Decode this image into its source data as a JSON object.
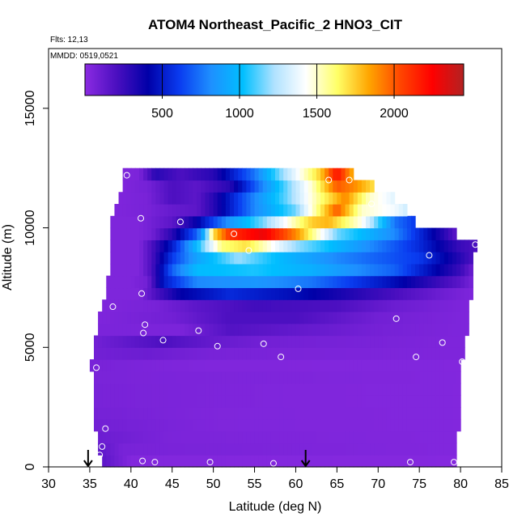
{
  "chart_data": {
    "type": "heatmap",
    "title": "ATOM4 Northeast_Pacific_2 HNO3_CIT",
    "flights_label": "Flts: 12,13",
    "dates_label": "MMDD: 0519,0521",
    "xlabel": "Latitude (deg N)",
    "ylabel": "Altitude (m)",
    "xlim": [
      30,
      85
    ],
    "ylim": [
      0,
      17500
    ],
    "x_ticks": [
      30,
      35,
      40,
      45,
      50,
      55,
      60,
      65,
      70,
      75,
      80,
      85
    ],
    "y_ticks": [
      0,
      5000,
      10000,
      15000
    ],
    "colorbar": {
      "range": [
        0,
        2450
      ],
      "ticks": [
        500,
        1000,
        1500,
        2000
      ],
      "colors": [
        "#8b2be2",
        "#4b0fc0",
        "#0000a8",
        "#0a3cf0",
        "#1e90ff",
        "#00bfff",
        "#b0e2ff",
        "#ffffff",
        "#ffff66",
        "#ffa500",
        "#ff4500",
        "#ff0000",
        "#b22222"
      ]
    },
    "grid": false,
    "layers": [
      {
        "alt": 250,
        "lat_min": 36.5,
        "lat_max": 79.5,
        "profile": [
          [
            36.5,
            150
          ],
          [
            40,
            30
          ],
          [
            80,
            20
          ]
        ]
      },
      {
        "alt": 750,
        "lat_min": 36.0,
        "lat_max": 79.5,
        "profile": [
          [
            36,
            150
          ],
          [
            39,
            60
          ],
          [
            80,
            30
          ]
        ]
      },
      {
        "alt": 1250,
        "lat_min": 36.0,
        "lat_max": 79.5,
        "profile": [
          [
            36,
            100
          ],
          [
            45,
            50
          ],
          [
            80,
            30
          ]
        ]
      },
      {
        "alt": 1750,
        "lat_min": 35.5,
        "lat_max": 80.0,
        "profile": [
          [
            35.5,
            80
          ],
          [
            50,
            40
          ],
          [
            80,
            30
          ]
        ]
      },
      {
        "alt": 2250,
        "lat_min": 35.5,
        "lat_max": 80.0,
        "profile": [
          [
            35.5,
            70
          ],
          [
            50,
            40
          ],
          [
            80,
            30
          ]
        ]
      },
      {
        "alt": 2750,
        "lat_min": 35.5,
        "lat_max": 80.0,
        "profile": [
          [
            35.5,
            60
          ],
          [
            60,
            35
          ],
          [
            80,
            30
          ]
        ]
      },
      {
        "alt": 3250,
        "lat_min": 35.5,
        "lat_max": 80.0,
        "profile": [
          [
            35.5,
            60
          ],
          [
            60,
            35
          ],
          [
            80,
            30
          ]
        ]
      },
      {
        "alt": 3750,
        "lat_min": 35.5,
        "lat_max": 80.0,
        "profile": [
          [
            35.5,
            55
          ],
          [
            80,
            30
          ]
        ]
      },
      {
        "alt": 4250,
        "lat_min": 35.0,
        "lat_max": 80.0,
        "profile": [
          [
            35,
            60
          ],
          [
            50,
            35
          ],
          [
            80,
            30
          ]
        ]
      },
      {
        "alt": 4750,
        "lat_min": 35.5,
        "lat_max": 80.5,
        "profile": [
          [
            35.5,
            80
          ],
          [
            42,
            100
          ],
          [
            50,
            60
          ],
          [
            80,
            40
          ]
        ]
      },
      {
        "alt": 5250,
        "lat_min": 35.5,
        "lat_max": 80.5,
        "profile": [
          [
            35.5,
            80
          ],
          [
            44,
            200
          ],
          [
            50,
            120
          ],
          [
            56,
            80
          ],
          [
            80,
            40
          ]
        ]
      },
      {
        "alt": 5750,
        "lat_min": 36.0,
        "lat_max": 81.0,
        "profile": [
          [
            36,
            50
          ],
          [
            46,
            50
          ],
          [
            52,
            180
          ],
          [
            60,
            130
          ],
          [
            70,
            70
          ],
          [
            81,
            40
          ]
        ]
      },
      {
        "alt": 6250,
        "lat_min": 36.0,
        "lat_max": 81.0,
        "profile": [
          [
            36,
            40
          ],
          [
            45,
            80
          ],
          [
            52,
            200
          ],
          [
            60,
            200
          ],
          [
            70,
            80
          ],
          [
            81,
            40
          ]
        ]
      },
      {
        "alt": 6750,
        "lat_min": 36.5,
        "lat_max": 81.0,
        "profile": [
          [
            36.5,
            40
          ],
          [
            43,
            60
          ],
          [
            48,
            150
          ],
          [
            55,
            230
          ],
          [
            65,
            200
          ],
          [
            72,
            100
          ],
          [
            81,
            40
          ]
        ]
      },
      {
        "alt": 7250,
        "lat_min": 37.0,
        "lat_max": 81.5,
        "profile": [
          [
            37,
            40
          ],
          [
            41,
            40
          ],
          [
            43,
            200
          ],
          [
            46,
            400
          ],
          [
            52,
            550
          ],
          [
            60,
            450
          ],
          [
            70,
            250
          ],
          [
            78,
            90
          ],
          [
            81.5,
            40
          ]
        ]
      },
      {
        "alt": 7750,
        "lat_min": 37.0,
        "lat_max": 81.5,
        "profile": [
          [
            37,
            40
          ],
          [
            40,
            40
          ],
          [
            42,
            80
          ],
          [
            44,
            500
          ],
          [
            48,
            800
          ],
          [
            55,
            850
          ],
          [
            62,
            750
          ],
          [
            72,
            450
          ],
          [
            80,
            150
          ],
          [
            81.5,
            60
          ]
        ]
      },
      {
        "alt": 8250,
        "lat_min": 37.5,
        "lat_max": 81.5,
        "profile": [
          [
            37.5,
            40
          ],
          [
            41,
            40
          ],
          [
            42.5,
            200
          ],
          [
            45,
            700
          ],
          [
            48,
            1000
          ],
          [
            55,
            1050
          ],
          [
            62,
            950
          ],
          [
            72,
            700
          ],
          [
            80,
            250
          ],
          [
            81.5,
            100
          ]
        ]
      },
      {
        "alt": 8750,
        "lat_min": 37.5,
        "lat_max": 81.5,
        "profile": [
          [
            37.5,
            40
          ],
          [
            41,
            40
          ],
          [
            42.5,
            200
          ],
          [
            45,
            600
          ],
          [
            48,
            900
          ],
          [
            53,
            1200
          ],
          [
            58,
            1000
          ],
          [
            65,
            800
          ],
          [
            75,
            600
          ],
          [
            80,
            300
          ],
          [
            81.5,
            200
          ]
        ]
      },
      {
        "alt": 9250,
        "lat_min": 37.5,
        "lat_max": 82.0,
        "profile": [
          [
            37.5,
            40
          ],
          [
            41,
            40
          ],
          [
            42.5,
            200
          ],
          [
            45,
            500
          ],
          [
            48,
            1000
          ],
          [
            51,
            1600
          ],
          [
            54,
            1700
          ],
          [
            60,
            1200
          ],
          [
            68,
            850
          ],
          [
            75,
            550
          ],
          [
            80,
            250
          ],
          [
            82,
            200
          ]
        ]
      },
      {
        "alt": 9750,
        "lat_min": 37.5,
        "lat_max": 79.5,
        "profile": [
          [
            37.5,
            40
          ],
          [
            41,
            40
          ],
          [
            42.5,
            80
          ],
          [
            45,
            300
          ],
          [
            48,
            700
          ],
          [
            49,
            1000
          ],
          [
            50,
            1700
          ],
          [
            52,
            2100
          ],
          [
            56,
            2300
          ],
          [
            60,
            1900
          ],
          [
            65,
            1150
          ],
          [
            72,
            800
          ],
          [
            78,
            300
          ],
          [
            79.5,
            150
          ]
        ]
      },
      {
        "alt": 10250,
        "lat_min": 37.5,
        "lat_max": 74.5,
        "profile": [
          [
            37.5,
            40
          ],
          [
            39,
            40
          ],
          [
            41,
            40
          ],
          [
            45,
            150
          ],
          [
            48,
            400
          ],
          [
            52,
            850
          ],
          [
            56,
            1150
          ],
          [
            62,
            1750
          ],
          [
            64,
            1800
          ],
          [
            68,
            1450
          ],
          [
            72,
            750
          ],
          [
            74.5,
            600
          ]
        ]
      },
      {
        "alt": 10750,
        "lat_min": 38.0,
        "lat_max": 73.5,
        "profile": [
          [
            38,
            40
          ],
          [
            42,
            60
          ],
          [
            45,
            120
          ],
          [
            48,
            150
          ],
          [
            50,
            300
          ],
          [
            55,
            800
          ],
          [
            60,
            1150
          ],
          [
            65,
            2000
          ],
          [
            68,
            1500
          ],
          [
            72,
            1400
          ],
          [
            73.5,
            1300
          ]
        ]
      },
      {
        "alt": 11250,
        "lat_min": 38.5,
        "lat_max": 72.0,
        "profile": [
          [
            38.5,
            40
          ],
          [
            42,
            60
          ],
          [
            45,
            200
          ],
          [
            48,
            150
          ],
          [
            50,
            300
          ],
          [
            55,
            800
          ],
          [
            59,
            1150
          ],
          [
            63,
            1600
          ],
          [
            66,
            1900
          ],
          [
            69,
            1500
          ],
          [
            72,
            1350
          ]
        ]
      },
      {
        "alt": 11750,
        "lat_min": 39.0,
        "lat_max": 69.5,
        "profile": [
          [
            39,
            40
          ],
          [
            42,
            70
          ],
          [
            45,
            200
          ],
          [
            48,
            150
          ],
          [
            52,
            300
          ],
          [
            56,
            800
          ],
          [
            59,
            1150
          ],
          [
            62,
            1500
          ],
          [
            65,
            2000
          ],
          [
            67,
            1900
          ],
          [
            69.5,
            1700
          ]
        ]
      },
      {
        "alt": 12250,
        "lat_min": 39.0,
        "lat_max": 67.0,
        "profile": [
          [
            39,
            40
          ],
          [
            41,
            50
          ],
          [
            43,
            300
          ],
          [
            46,
            200
          ],
          [
            50,
            300
          ],
          [
            55,
            750
          ],
          [
            58,
            1150
          ],
          [
            61,
            1500
          ],
          [
            63,
            1750
          ],
          [
            65,
            2200
          ],
          [
            67,
            1800
          ]
        ]
      }
    ],
    "points": [
      {
        "lat": 39.5,
        "alt": 12200
      },
      {
        "lat": 64.0,
        "alt": 12000
      },
      {
        "lat": 66.5,
        "alt": 12000
      },
      {
        "lat": 69.2,
        "alt": 11000
      },
      {
        "lat": 41.2,
        "alt": 10400
      },
      {
        "lat": 46.0,
        "alt": 10250
      },
      {
        "lat": 52.5,
        "alt": 9750
      },
      {
        "lat": 54.3,
        "alt": 9050
      },
      {
        "lat": 76.2,
        "alt": 8850
      },
      {
        "lat": 81.8,
        "alt": 9300
      },
      {
        "lat": 60.3,
        "alt": 7450
      },
      {
        "lat": 41.3,
        "alt": 7250
      },
      {
        "lat": 37.8,
        "alt": 6700
      },
      {
        "lat": 72.2,
        "alt": 6200
      },
      {
        "lat": 41.7,
        "alt": 5950
      },
      {
        "lat": 41.5,
        "alt": 5600
      },
      {
        "lat": 48.2,
        "alt": 5700
      },
      {
        "lat": 43.9,
        "alt": 5300
      },
      {
        "lat": 50.5,
        "alt": 5050
      },
      {
        "lat": 56.1,
        "alt": 5150
      },
      {
        "lat": 77.8,
        "alt": 5200
      },
      {
        "lat": 58.2,
        "alt": 4600
      },
      {
        "lat": 74.6,
        "alt": 4600
      },
      {
        "lat": 80.2,
        "alt": 4400
      },
      {
        "lat": 35.8,
        "alt": 4150
      },
      {
        "lat": 36.9,
        "alt": 1600
      },
      {
        "lat": 36.5,
        "alt": 850
      },
      {
        "lat": 36.2,
        "alt": 500
      },
      {
        "lat": 41.4,
        "alt": 250
      },
      {
        "lat": 42.9,
        "alt": 200
      },
      {
        "lat": 49.6,
        "alt": 200
      },
      {
        "lat": 57.3,
        "alt": 150
      },
      {
        "lat": 73.9,
        "alt": 200
      },
      {
        "lat": 79.2,
        "alt": 200
      }
    ],
    "markers": [
      {
        "lat": 34.8
      },
      {
        "lat": 61.2
      }
    ]
  }
}
